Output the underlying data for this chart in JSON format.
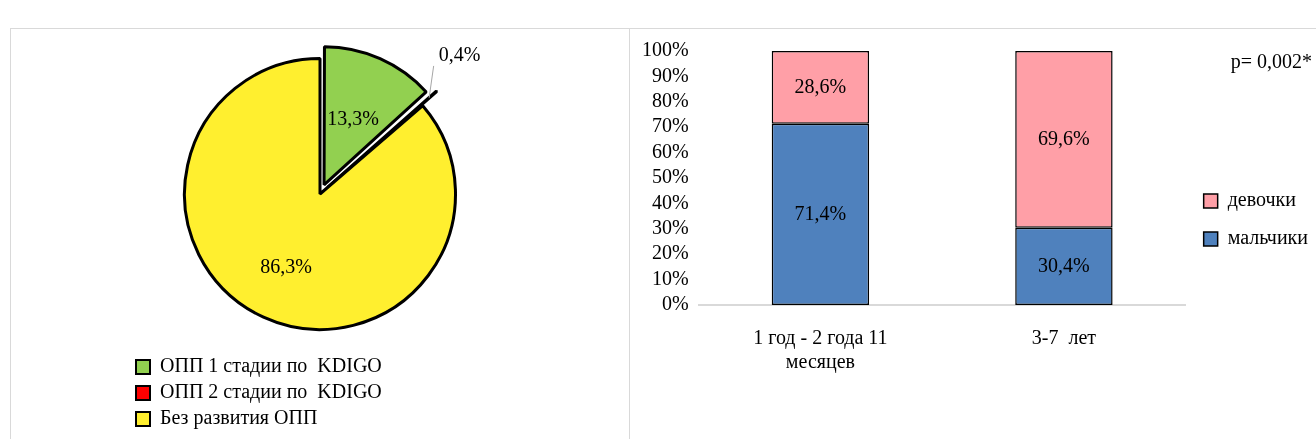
{
  "chart_data": [
    {
      "type": "pie",
      "categories": [
        "ОПП 1 стадии по  KDIGO",
        "ОПП 2 стадии по  KDIGO",
        "Без развития ОПП"
      ],
      "values": [
        13.3,
        0.4,
        86.3
      ],
      "colors": [
        "#92d050",
        "#ff0000",
        "#ffef2f"
      ],
      "value_labels": [
        "13,3%",
        "0,4%",
        "86,3%"
      ],
      "legend": "bottom"
    },
    {
      "type": "bar",
      "categories": [
        "1 год - 2 года 11 месяцев",
        "3-7  лет"
      ],
      "series": [
        {
          "name": "мальчики",
          "color": "#4f81bd",
          "values": [
            71.4,
            30.4
          ],
          "value_labels": [
            "71,4%",
            "30,4%"
          ]
        },
        {
          "name": "девочки",
          "color": "#ff9fa7",
          "values": [
            28.6,
            69.6
          ],
          "value_labels": [
            "28,6%",
            "69,6%"
          ]
        }
      ],
      "stacked": true,
      "ylim": [
        0,
        100
      ],
      "yticks": [
        {
          "value": 0,
          "label": "0%"
        },
        {
          "value": 10,
          "label": "10%"
        },
        {
          "value": 20,
          "label": "20%"
        },
        {
          "value": 30,
          "label": "30%"
        },
        {
          "value": 40,
          "label": "40%"
        },
        {
          "value": 50,
          "label": "50%"
        },
        {
          "value": 60,
          "label": "60%"
        },
        {
          "value": 70,
          "label": "70%"
        },
        {
          "value": 80,
          "label": "80%"
        },
        {
          "value": 90,
          "label": "90%"
        },
        {
          "value": 100,
          "label": "100%"
        }
      ],
      "grid": false,
      "legend": "right",
      "annotations": [
        "p= 0,002*"
      ]
    }
  ]
}
